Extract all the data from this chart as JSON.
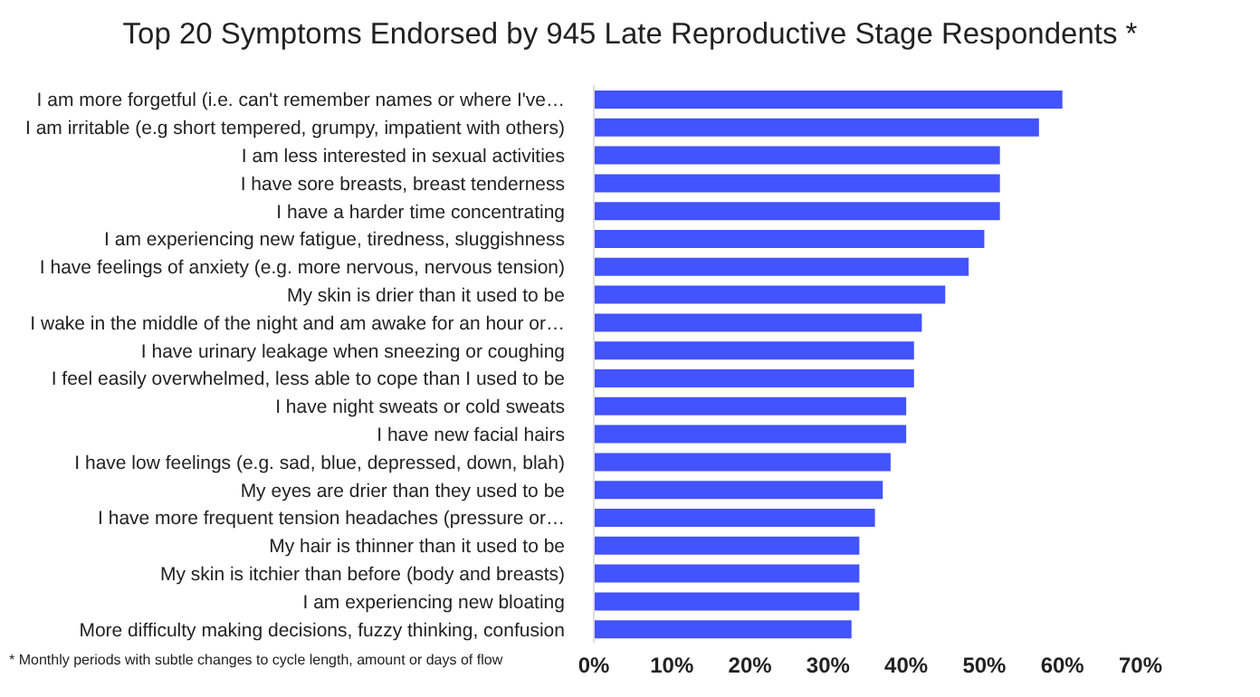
{
  "chart_data": {
    "type": "bar",
    "orientation": "horizontal",
    "title": "Top 20 Symptoms Endorsed by 945 Late Reproductive Stage Respondents *",
    "categories": [
      "I am more forgetful (i.e. can't remember names or where I've…",
      "I am irritable (e.g short tempered, grumpy, impatient with others)",
      "I am less interested in sexual activities",
      "I have sore breasts, breast tenderness",
      "I have a harder time concentrating",
      "I am experiencing new fatigue, tiredness, sluggishness",
      "I have feelings of anxiety (e.g. more nervous, nervous tension)",
      "My skin is drier than it used to be",
      "I wake in the middle of the night and am awake for an hour or…",
      "I have urinary leakage when sneezing or coughing",
      "I feel easily overwhelmed, less able to cope than I used to be",
      "I have night sweats or cold sweats",
      "I have new facial hairs",
      "I have low feelings (e.g. sad, blue, depressed, down, blah)",
      "My eyes are drier than they used to be",
      "I have more frequent tension headaches (pressure or…",
      "My hair is thinner than it used to be",
      "My skin is itchier than before (body and breasts)",
      "I am experiencing new bloating",
      "More difficulty making decisions,  fuzzy thinking, confusion"
    ],
    "values": [
      60,
      57,
      52,
      52,
      52,
      50,
      48,
      45,
      42,
      41,
      41,
      40,
      40,
      38,
      37,
      36,
      34,
      34,
      34,
      33
    ],
    "color": "#4353fd",
    "xlim": [
      0,
      70
    ],
    "xticks": [
      {
        "value": 0,
        "label": "0%"
      },
      {
        "value": 10,
        "label": "10%"
      },
      {
        "value": 20,
        "label": "20%"
      },
      {
        "value": 30,
        "label": "30%"
      },
      {
        "value": 40,
        "label": "40%"
      },
      {
        "value": 50,
        "label": "50%"
      },
      {
        "value": 60,
        "label": "60%"
      },
      {
        "value": 70,
        "label": "70%"
      }
    ],
    "grid": false,
    "legend": false,
    "annotations": [
      "* Monthly periods with subtle changes to cycle length, amount or days of flow"
    ]
  }
}
